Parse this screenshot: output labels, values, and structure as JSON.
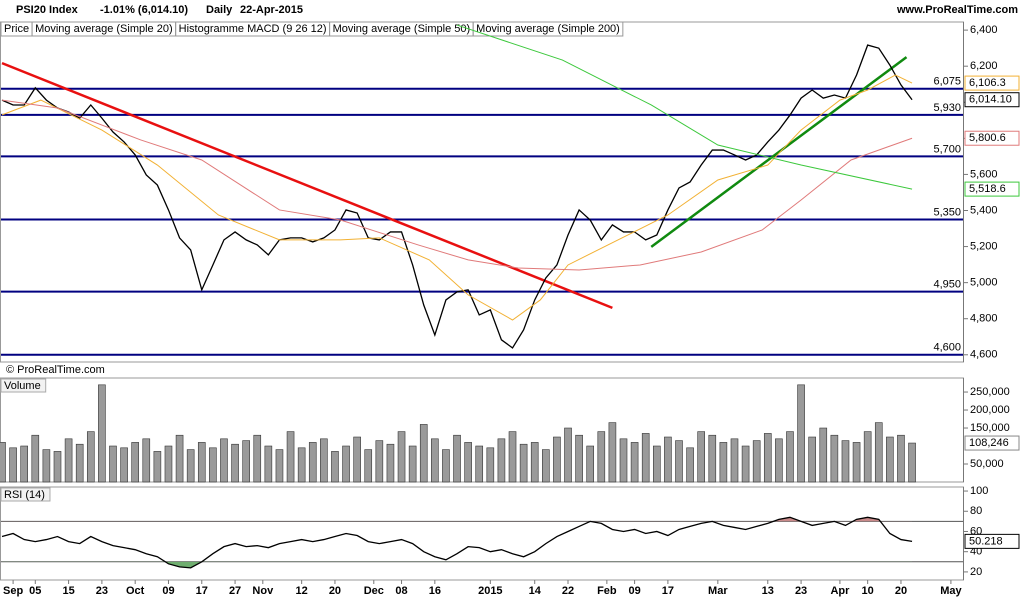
{
  "header": {
    "title": "PSI20 Index",
    "change": "-1.01% (6,014.10)",
    "period": "Daily",
    "date": "22-Apr-2015",
    "site": "www.ProRealTime.com",
    "copyright": "© ProRealTime.com"
  },
  "chart_data": [
    {
      "type": "line",
      "xlim": [
        0,
        173
      ],
      "ylim": [
        4560,
        6445
      ],
      "yticks": [
        {
          "value": 6400,
          "label": "6,400"
        },
        {
          "value": 6200,
          "label": "6,200"
        },
        {
          "value": 6000,
          "label": "6,000"
        },
        {
          "value": 5800,
          "label": "5,800"
        },
        {
          "value": 5600,
          "label": "5,600"
        },
        {
          "value": 5400,
          "label": "5,400"
        },
        {
          "value": 5200,
          "label": "5,200"
        },
        {
          "value": 5000,
          "label": "5,000"
        },
        {
          "value": 4800,
          "label": "4,800"
        },
        {
          "value": 4600,
          "label": "4,600"
        }
      ],
      "levels": [
        {
          "value": 6075,
          "label": "6,075"
        },
        {
          "value": 5930,
          "label": "5,930"
        },
        {
          "value": 5700,
          "label": "5,700"
        },
        {
          "value": 5350,
          "label": "5,350"
        },
        {
          "value": 4950,
          "label": "4,950"
        },
        {
          "value": 4600,
          "label": "4,600"
        }
      ],
      "level_color": "#000080",
      "trendlines": [
        {
          "color": "#e81010",
          "x": [
            0,
            110
          ],
          "values": [
            6217,
            4860
          ]
        },
        {
          "color": "#108a10",
          "x": [
            117,
            163
          ],
          "values": [
            5198,
            6250
          ]
        }
      ],
      "series": [
        {
          "name": "Price",
          "color": "#000000",
          "last_label": "6,014.10",
          "x": [
            0,
            2,
            4,
            6,
            8,
            10,
            12,
            14,
            16,
            18,
            20,
            22,
            24,
            26,
            28,
            30,
            32,
            34,
            36,
            38,
            40,
            42,
            44,
            46,
            48,
            50,
            52,
            54,
            56,
            58,
            60,
            62,
            64,
            66,
            68,
            70,
            72,
            74,
            76,
            78,
            80,
            82,
            84,
            86,
            88,
            90,
            92,
            94,
            96,
            98,
            100,
            102,
            104,
            106,
            108,
            110,
            112,
            114,
            116,
            118,
            120,
            122,
            124,
            126,
            128,
            130,
            132,
            134,
            136,
            138,
            140,
            142,
            144,
            146,
            148,
            150,
            152,
            154,
            156,
            158,
            160,
            162,
            164
          ],
          "values": [
            6012,
            5985,
            5985,
            6080,
            6012,
            5968,
            5946,
            5912,
            5985,
            5912,
            5835,
            5780,
            5708,
            5597,
            5541,
            5403,
            5248,
            5181,
            4960,
            5098,
            5237,
            5281,
            5237,
            5209,
            5154,
            5237,
            5248,
            5248,
            5226,
            5248,
            5292,
            5403,
            5386,
            5248,
            5237,
            5281,
            5281,
            5098,
            4876,
            4710,
            4904,
            4949,
            4960,
            4821,
            4849,
            4683,
            4638,
            4738,
            4904,
            5026,
            5098,
            5264,
            5403,
            5347,
            5237,
            5320,
            5281,
            5281,
            5237,
            5264,
            5403,
            5525,
            5558,
            5652,
            5735,
            5735,
            5708,
            5680,
            5708,
            5780,
            5846,
            5929,
            6023,
            6068,
            6023,
            6040,
            6023,
            6151,
            6317,
            6300,
            6206,
            6096,
            6014.1
          ]
        },
        {
          "name": "Moving average (Simple 20)",
          "color": "#f2b134",
          "last_label": "6,106.3",
          "x": [
            0,
            7,
            18,
            28,
            39,
            50,
            61,
            68,
            77,
            84,
            92,
            97,
            102,
            111,
            120,
            129,
            138,
            144,
            151,
            156,
            161,
            164
          ],
          "values": [
            5930,
            6012,
            5846,
            5652,
            5375,
            5237,
            5237,
            5248,
            5126,
            4932,
            4793,
            4904,
            5098,
            5237,
            5375,
            5569,
            5652,
            5846,
            6012,
            6068,
            6151,
            6106.3
          ]
        },
        {
          "name": "Histogramme MACD (9 26 12)",
          "color": "#000000"
        },
        {
          "name": "Moving average (Simple 50)",
          "color": "#e07a7a",
          "last_label": "5,800.6",
          "x": [
            0,
            10,
            25,
            36,
            50,
            61,
            75,
            84,
            93,
            104,
            115,
            126,
            137,
            144,
            153,
            164
          ],
          "values": [
            6012,
            5968,
            5791,
            5680,
            5403,
            5347,
            5209,
            5126,
            5081,
            5070,
            5098,
            5170,
            5292,
            5458,
            5680,
            5800.6
          ]
        },
        {
          "name": "Moving average (Simple 200)",
          "color": "#3cc83c",
          "last_label": "5,518.6",
          "x": [
            82,
            101,
            117,
            129,
            144,
            164
          ],
          "values": [
            6428,
            6234,
            5985,
            5763,
            5652,
            5518.6
          ]
        }
      ]
    },
    {
      "type": "bar",
      "title": "Volume",
      "color": "#9a9a9a",
      "xlim": [
        0,
        173
      ],
      "ylim": [
        0,
        289000
      ],
      "yticks": [
        {
          "value": 250000,
          "label": "250,000"
        },
        {
          "value": 200000,
          "label": "200,000"
        },
        {
          "value": 150000,
          "label": "150,000"
        },
        {
          "value": 50000,
          "label": "50,000"
        }
      ],
      "last_label": "108,246",
      "x": [
        0,
        2,
        4,
        6,
        8,
        10,
        12,
        14,
        16,
        18,
        20,
        22,
        24,
        26,
        28,
        30,
        32,
        34,
        36,
        38,
        40,
        42,
        44,
        46,
        48,
        50,
        52,
        54,
        56,
        58,
        60,
        62,
        64,
        66,
        68,
        70,
        72,
        74,
        76,
        78,
        80,
        82,
        84,
        86,
        88,
        90,
        92,
        94,
        96,
        98,
        100,
        102,
        104,
        106,
        108,
        110,
        112,
        114,
        116,
        118,
        120,
        122,
        124,
        126,
        128,
        130,
        132,
        134,
        136,
        138,
        140,
        142,
        144,
        146,
        148,
        150,
        152,
        154,
        156,
        158,
        160,
        162,
        164
      ],
      "values": [
        110000,
        95000,
        100000,
        130000,
        90000,
        85000,
        120000,
        105000,
        140000,
        270000,
        100000,
        95000,
        110000,
        120000,
        85000,
        100000,
        130000,
        90000,
        110000,
        95000,
        120000,
        105000,
        115000,
        130000,
        100000,
        90000,
        140000,
        95000,
        110000,
        120000,
        85000,
        100000,
        125000,
        90000,
        115000,
        105000,
        140000,
        100000,
        160000,
        120000,
        90000,
        130000,
        110000,
        100000,
        95000,
        120000,
        140000,
        105000,
        110000,
        90000,
        125000,
        150000,
        130000,
        100000,
        140000,
        165000,
        120000,
        110000,
        135000,
        100000,
        125000,
        115000,
        95000,
        140000,
        130000,
        110000,
        120000,
        100000,
        115000,
        135000,
        120000,
        140000,
        270000,
        125000,
        150000,
        130000,
        115000,
        110000,
        140000,
        165000,
        125000,
        130000,
        108246
      ]
    },
    {
      "type": "line",
      "title": "RSI (14)",
      "xlim": [
        0,
        173
      ],
      "ylim": [
        12,
        104
      ],
      "yticks": [
        100,
        80,
        60,
        40,
        20
      ],
      "levels": [
        {
          "value": 70,
          "fill": "#c98a8a",
          "side": "above"
        },
        {
          "value": 30,
          "fill": "#6fae6f",
          "side": "below"
        }
      ],
      "level_color": "#555555",
      "xticks": [
        {
          "value": 2,
          "label": "Sep"
        },
        {
          "value": 6,
          "label": "05"
        },
        {
          "value": 12,
          "label": "15"
        },
        {
          "value": 18,
          "label": "23"
        },
        {
          "value": 24,
          "label": "Oct"
        },
        {
          "value": 30,
          "label": "09"
        },
        {
          "value": 36,
          "label": "17"
        },
        {
          "value": 42,
          "label": "27"
        },
        {
          "value": 47,
          "label": "Nov"
        },
        {
          "value": 54,
          "label": "12"
        },
        {
          "value": 60,
          "label": "20"
        },
        {
          "value": 67,
          "label": "Dec"
        },
        {
          "value": 72,
          "label": "08"
        },
        {
          "value": 78,
          "label": "16"
        },
        {
          "value": 88,
          "label": "2015"
        },
        {
          "value": 96,
          "label": "14"
        },
        {
          "value": 102,
          "label": "22"
        },
        {
          "value": 109,
          "label": "Feb"
        },
        {
          "value": 114,
          "label": "09"
        },
        {
          "value": 120,
          "label": "17"
        },
        {
          "value": 129,
          "label": "Mar"
        },
        {
          "value": 138,
          "label": "13"
        },
        {
          "value": 144,
          "label": "23"
        },
        {
          "value": 151,
          "label": "Apr"
        },
        {
          "value": 156,
          "label": "10"
        },
        {
          "value": 162,
          "label": "20"
        },
        {
          "value": 171,
          "label": "May"
        }
      ],
      "series": [
        {
          "color": "#000000",
          "last_label": "50.218",
          "x": [
            0,
            2,
            4,
            6,
            8,
            10,
            12,
            14,
            16,
            18,
            20,
            22,
            24,
            26,
            28,
            30,
            32,
            34,
            36,
            38,
            40,
            42,
            44,
            46,
            48,
            50,
            52,
            54,
            56,
            58,
            60,
            62,
            64,
            66,
            68,
            70,
            72,
            74,
            76,
            78,
            80,
            82,
            84,
            86,
            88,
            90,
            92,
            94,
            96,
            98,
            100,
            102,
            104,
            106,
            108,
            110,
            112,
            114,
            116,
            118,
            120,
            122,
            124,
            126,
            128,
            130,
            132,
            134,
            136,
            138,
            140,
            142,
            144,
            146,
            148,
            150,
            152,
            154,
            156,
            158,
            160,
            162,
            164
          ],
          "values": [
            55,
            58,
            52,
            50,
            52,
            55,
            50,
            48,
            55,
            50,
            46,
            44,
            42,
            38,
            35,
            28,
            25,
            24,
            30,
            38,
            45,
            48,
            45,
            46,
            44,
            48,
            50,
            52,
            50,
            52,
            55,
            58,
            56,
            50,
            48,
            50,
            52,
            48,
            40,
            35,
            32,
            38,
            45,
            44,
            40,
            42,
            38,
            35,
            40,
            48,
            55,
            60,
            65,
            70,
            68,
            62,
            60,
            62,
            58,
            60,
            56,
            62,
            65,
            68,
            70,
            66,
            64,
            62,
            65,
            68,
            72,
            74,
            70,
            66,
            68,
            70,
            66,
            72,
            74,
            72,
            58,
            52,
            50.218
          ]
        }
      ]
    }
  ]
}
